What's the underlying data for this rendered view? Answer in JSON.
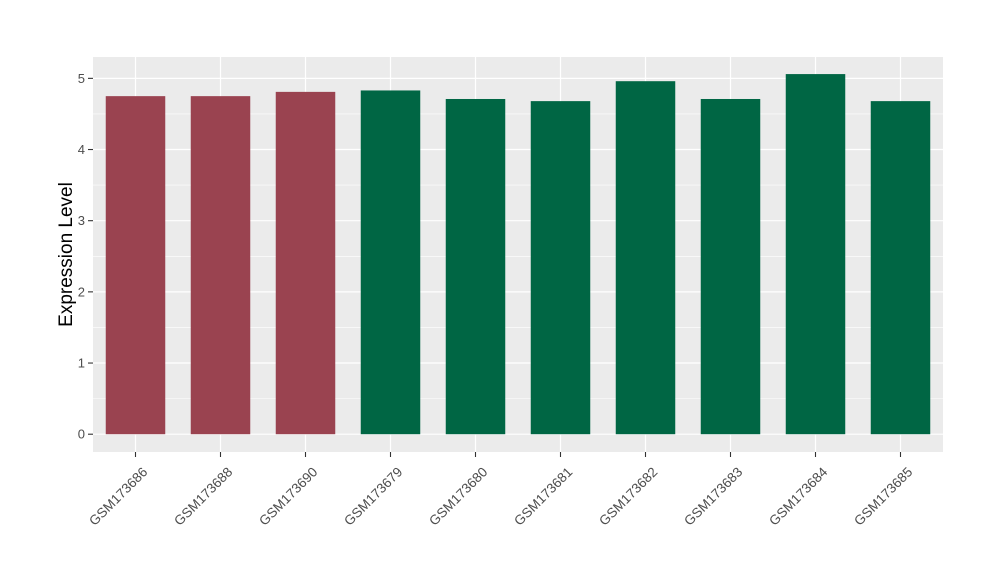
{
  "chart_data": {
    "type": "bar",
    "title": "",
    "xlabel": "",
    "ylabel": "Expression Level",
    "ylim": [
      -0.25,
      5.3
    ],
    "yticks": [
      0,
      1,
      2,
      3,
      4,
      5
    ],
    "grid": true,
    "legend": "none",
    "categories": [
      "GSM173686",
      "GSM173688",
      "GSM173690",
      "GSM173679",
      "GSM173680",
      "GSM173681",
      "GSM173682",
      "GSM173683",
      "GSM173684",
      "GSM173685"
    ],
    "values": [
      4.75,
      4.75,
      4.81,
      4.83,
      4.71,
      4.68,
      4.96,
      4.71,
      5.06,
      4.68
    ],
    "bar_colors": [
      "#9a4350",
      "#9a4350",
      "#9a4350",
      "#006644",
      "#006644",
      "#006644",
      "#006644",
      "#006644",
      "#006644",
      "#006644"
    ],
    "panel_background": "#ebebeb",
    "grid_color": "#ffffff"
  }
}
